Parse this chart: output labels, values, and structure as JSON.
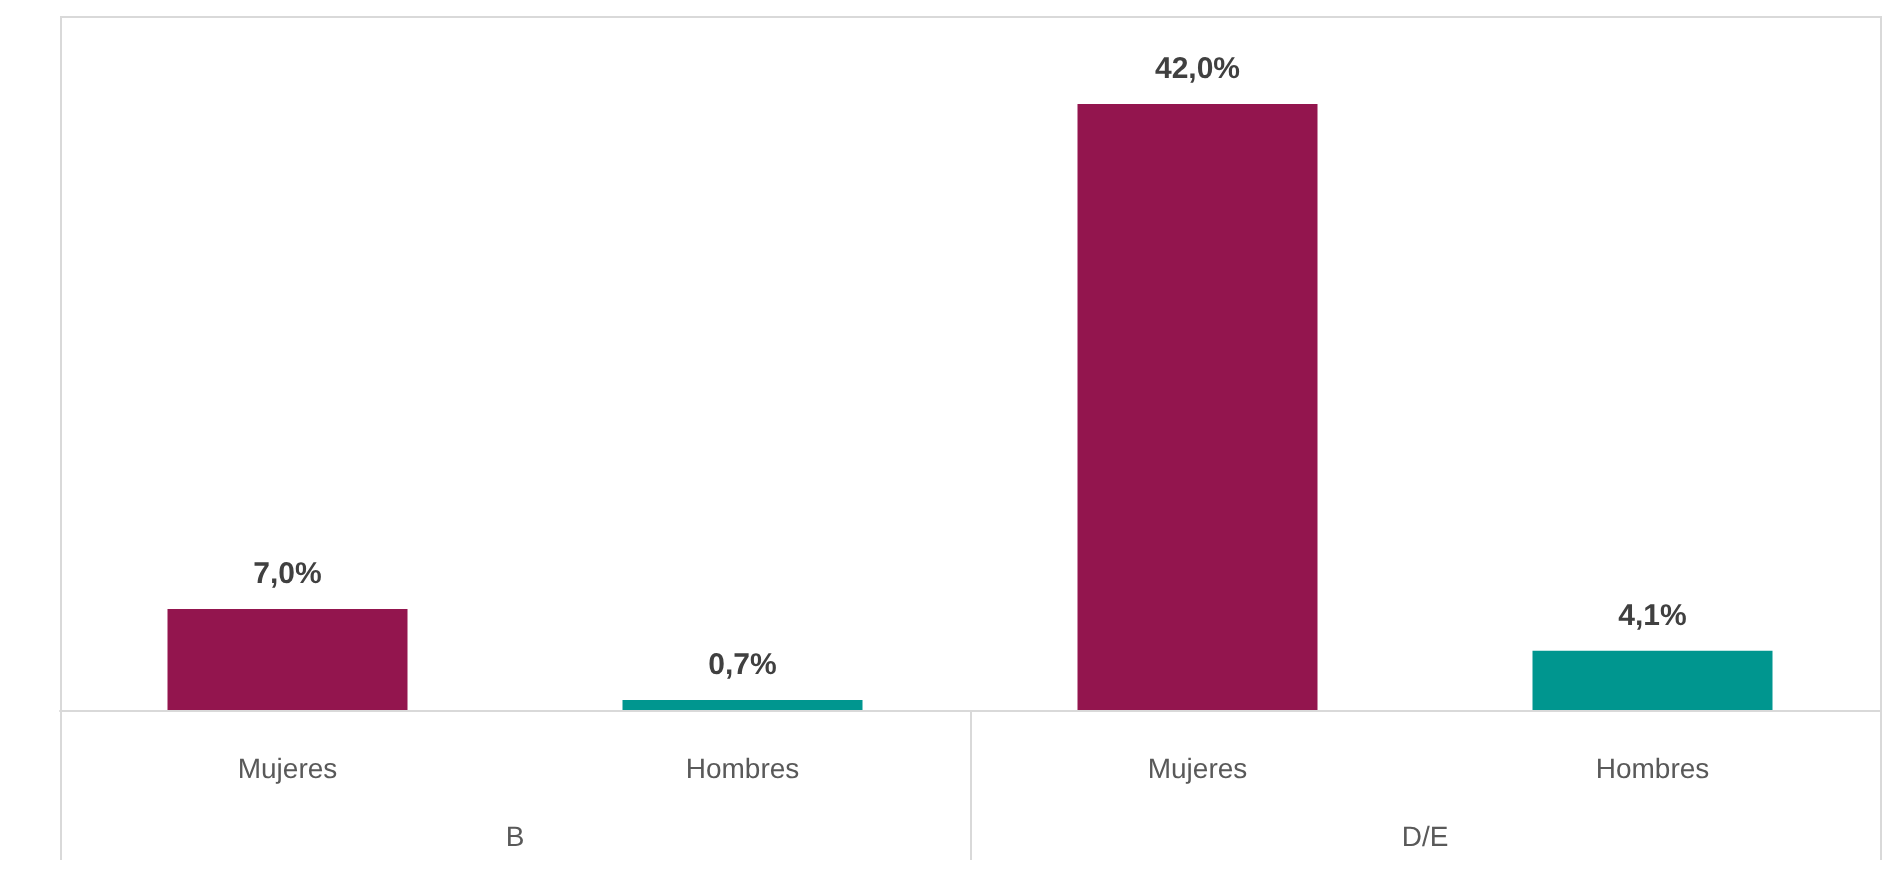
{
  "chart_data": {
    "type": "bar",
    "categories": [
      "Mujeres",
      "Hombres",
      "Mujeres",
      "Hombres"
    ],
    "values": [
      7.0,
      0.7,
      42.0,
      4.1
    ],
    "colors": [
      "#93154e",
      "#00968f",
      "#93154e",
      "#00968f"
    ],
    "value_labels": [
      "7,0%",
      "0,7%",
      "42,0%",
      "4,1%"
    ],
    "annotations": [
      "B",
      "D/E"
    ]
  }
}
